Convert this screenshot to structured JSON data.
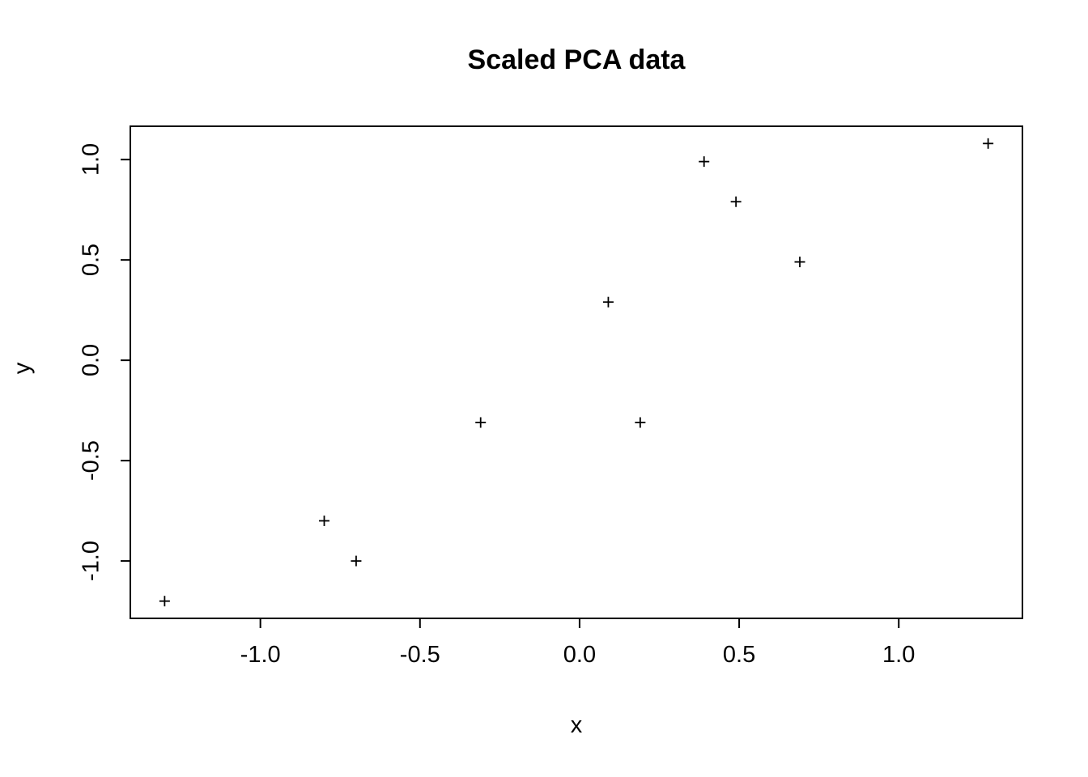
{
  "chart_data": {
    "type": "scatter",
    "title": "Scaled PCA data",
    "xlabel": "x",
    "ylabel": "y",
    "marker": "plus",
    "marker_color": "#000000",
    "grid": false,
    "legend": null,
    "xlim": [
      -1.41,
      1.39
    ],
    "ylim": [
      -1.29,
      1.17
    ],
    "xticks": [
      -1.0,
      -0.5,
      0.0,
      0.5,
      1.0
    ],
    "yticks": [
      -1.0,
      -0.5,
      0.0,
      0.5,
      1.0
    ],
    "xtick_labels": [
      "-1.0",
      "-0.5",
      "0.0",
      "0.5",
      "1.0"
    ],
    "ytick_labels": [
      "-1.0",
      "-0.5",
      "0.0",
      "0.5",
      "1.0"
    ],
    "points": [
      {
        "x": -1.3,
        "y": -1.2
      },
      {
        "x": -0.8,
        "y": -0.8
      },
      {
        "x": -0.7,
        "y": -1.0
      },
      {
        "x": -0.31,
        "y": -0.31
      },
      {
        "x": 0.09,
        "y": 0.29
      },
      {
        "x": 0.19,
        "y": -0.31
      },
      {
        "x": 0.39,
        "y": 0.99
      },
      {
        "x": 0.49,
        "y": 0.79
      },
      {
        "x": 0.69,
        "y": 0.49
      },
      {
        "x": 1.28,
        "y": 1.08
      }
    ]
  }
}
